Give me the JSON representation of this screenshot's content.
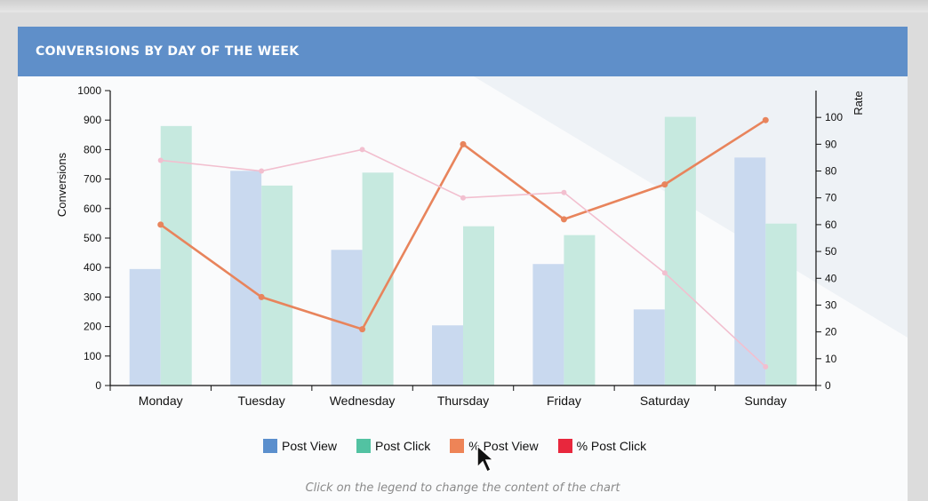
{
  "card": {
    "title": "CONVERSIONS BY DAY OF THE WEEK"
  },
  "footnote": "Click on the legend to change the content of the chart",
  "colors": {
    "post_view": "#c9d9ef",
    "post_click": "#c6e9df",
    "pct_post_view": "#e8845c",
    "pct_post_click": "#f2bfcf",
    "legend_post_view": "#5b8fcd",
    "legend_post_click": "#52c2a2",
    "legend_pct_post_view": "#ee8457",
    "legend_pct_post_click": "#e8273d"
  },
  "legend": [
    {
      "label": "Post View",
      "color_key": "legend_post_view",
      "icon": "square-swatch"
    },
    {
      "label": "Post Click",
      "color_key": "legend_post_click",
      "icon": "square-swatch"
    },
    {
      "label": "% Post View",
      "color_key": "legend_pct_post_view",
      "icon": "square-swatch"
    },
    {
      "label": "% Post Click",
      "color_key": "legend_pct_post_click",
      "icon": "square-swatch"
    }
  ],
  "chart_data": {
    "type": "bar",
    "title": "CONVERSIONS BY DAY OF THE WEEK",
    "categories": [
      "Monday",
      "Tuesday",
      "Wednesday",
      "Thursday",
      "Friday",
      "Saturday",
      "Sunday"
    ],
    "ylabel": "Conversions",
    "y2label": "Rate",
    "ylim": [
      0,
      1000
    ],
    "y2lim": [
      0,
      110
    ],
    "yticks": [
      0,
      100,
      200,
      300,
      400,
      500,
      600,
      700,
      800,
      900,
      1000
    ],
    "y2ticks": [
      0,
      10,
      20,
      30,
      40,
      50,
      60,
      70,
      80,
      90,
      100
    ],
    "grid": false,
    "legend_position": "bottom",
    "series": [
      {
        "name": "Post View",
        "type": "bar",
        "axis": "left",
        "color_key": "post_view",
        "values": [
          395,
          728,
          460,
          204,
          412,
          258,
          773
        ]
      },
      {
        "name": "Post Click",
        "type": "bar",
        "axis": "left",
        "color_key": "post_click",
        "values": [
          880,
          678,
          722,
          540,
          510,
          911,
          549
        ]
      },
      {
        "name": "% Post View",
        "type": "line",
        "axis": "right",
        "color_key": "pct_post_view",
        "values": [
          60,
          33,
          21,
          90,
          62,
          75,
          99
        ]
      },
      {
        "name": "% Post Click",
        "type": "line",
        "axis": "right",
        "color_key": "pct_post_click",
        "values": [
          84,
          80,
          88,
          70,
          72,
          42,
          7
        ]
      }
    ]
  }
}
